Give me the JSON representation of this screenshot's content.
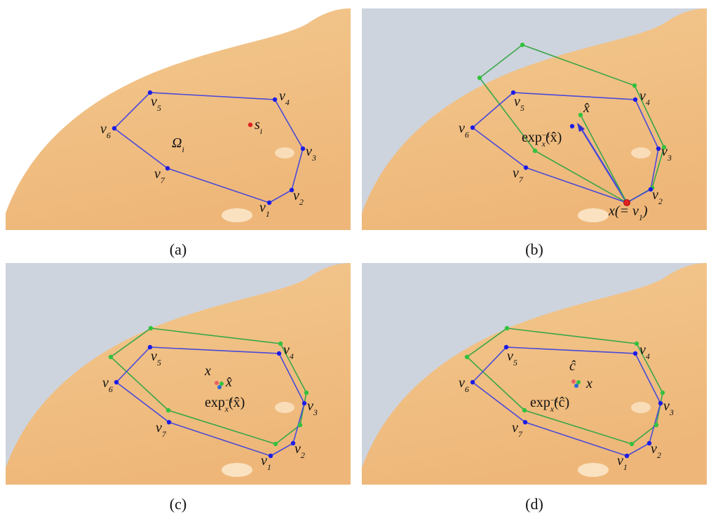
{
  "panels": [
    {
      "caption": "(a)",
      "labels": [
        [
          "v",
          {
            "sub": "1"
          }
        ],
        [
          "v",
          {
            "sub": "2"
          }
        ],
        [
          "v",
          {
            "sub": "3"
          }
        ],
        [
          "v",
          {
            "sub": "4"
          }
        ],
        [
          "v",
          {
            "sub": "5"
          }
        ],
        [
          "v",
          {
            "sub": "6"
          }
        ],
        [
          "v",
          {
            "sub": "7"
          }
        ],
        [
          "Ω",
          {
            "sub": "i"
          }
        ],
        [
          "s",
          {
            "sub": "i"
          }
        ]
      ]
    },
    {
      "caption": "(b)",
      "labels": [
        [
          "x(= v",
          {
            "sub": "1"
          },
          ")"
        ],
        [
          "v",
          {
            "sub": "2"
          }
        ],
        [
          "v",
          {
            "sub": "3"
          }
        ],
        [
          "v",
          {
            "sub": "4"
          }
        ],
        [
          "v",
          {
            "sub": "5"
          }
        ],
        [
          "v",
          {
            "sub": "6"
          }
        ],
        [
          "v",
          {
            "sub": "7"
          }
        ],
        [
          "x̂"
        ],
        [
          "exp",
          {
            "sup": "−1"
          },
          {
            "sub": "x"
          },
          "(x̂)"
        ]
      ]
    },
    {
      "caption": "(c)",
      "labels": [
        [
          "v",
          {
            "sub": "1"
          }
        ],
        [
          "v",
          {
            "sub": "2"
          }
        ],
        [
          "v",
          {
            "sub": "3"
          }
        ],
        [
          "v",
          {
            "sub": "4"
          }
        ],
        [
          "v",
          {
            "sub": "5"
          }
        ],
        [
          "v",
          {
            "sub": "6"
          }
        ],
        [
          "v",
          {
            "sub": "7"
          }
        ],
        [
          "x"
        ],
        [
          "x̂"
        ],
        [
          "exp",
          {
            "sup": "−1"
          },
          {
            "sub": "x"
          },
          "(x̂)"
        ]
      ]
    },
    {
      "caption": "(d)",
      "labels": [
        [
          "v",
          {
            "sub": "1"
          }
        ],
        [
          "v",
          {
            "sub": "2"
          }
        ],
        [
          "v",
          {
            "sub": "3"
          }
        ],
        [
          "v",
          {
            "sub": "4"
          }
        ],
        [
          "v",
          {
            "sub": "5"
          }
        ],
        [
          "v",
          {
            "sub": "6"
          }
        ],
        [
          "v",
          {
            "sub": "7"
          }
        ],
        [
          "ĉ"
        ],
        [
          "x"
        ],
        [
          "exp",
          {
            "sup": "−1"
          },
          {
            "sub": "x"
          },
          "(ĉ)"
        ]
      ]
    }
  ]
}
